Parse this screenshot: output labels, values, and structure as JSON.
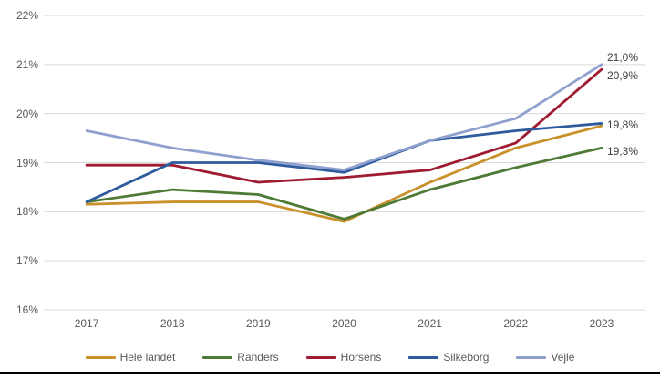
{
  "chart_data": {
    "type": "line",
    "x": [
      "2017",
      "2018",
      "2019",
      "2020",
      "2021",
      "2022",
      "2023"
    ],
    "series": [
      {
        "name": "Hele landet",
        "color": "#C9912B",
        "values": [
          18.15,
          18.2,
          18.2,
          17.8,
          18.6,
          19.3,
          19.75
        ]
      },
      {
        "name": "Randers",
        "color": "#4E7A35",
        "values": [
          18.2,
          18.45,
          18.35,
          17.85,
          18.45,
          18.9,
          19.3
        ]
      },
      {
        "name": "Horsens",
        "color": "#9E1B32",
        "values": [
          18.95,
          18.95,
          18.6,
          18.7,
          18.85,
          19.4,
          20.9
        ]
      },
      {
        "name": "Silkeborg",
        "color": "#2E5B9E",
        "values": [
          18.2,
          19.0,
          19.0,
          18.8,
          19.45,
          19.65,
          19.8
        ]
      },
      {
        "name": "Vejle",
        "color": "#8F9FCE",
        "values": [
          19.65,
          19.3,
          19.05,
          18.85,
          19.45,
          19.9,
          21.0
        ]
      }
    ],
    "title": "",
    "xlabel": "",
    "ylabel": "",
    "ylim": [
      16,
      22
    ],
    "y_tick_labels": [
      "16%",
      "17%",
      "18%",
      "19%",
      "20%",
      "21%",
      "22%"
    ],
    "grid": true,
    "legend_position": "bottom",
    "legend_entries": [
      "Hele landet",
      "Randers",
      "Horsens",
      "Silkeborg",
      "Vejle"
    ],
    "data_labels": [
      {
        "text": "21,0%",
        "series": "Vejle",
        "value": 21.0,
        "dy": -8
      },
      {
        "text": "20,9%",
        "series": "Horsens",
        "value": 20.9,
        "dy": 7
      },
      {
        "text": "19,8%",
        "series": "Silkeborg",
        "value": 19.8,
        "dy": 2
      },
      {
        "text": "19,3%",
        "series": "Randers",
        "value": 19.3,
        "dy": 4
      }
    ]
  },
  "colors": {
    "grid": "#D9D9D9",
    "tick_text": "#595959",
    "data_label_text": "#3f3f3f",
    "bottom_rule": "#000000",
    "background": "#ffffff"
  }
}
